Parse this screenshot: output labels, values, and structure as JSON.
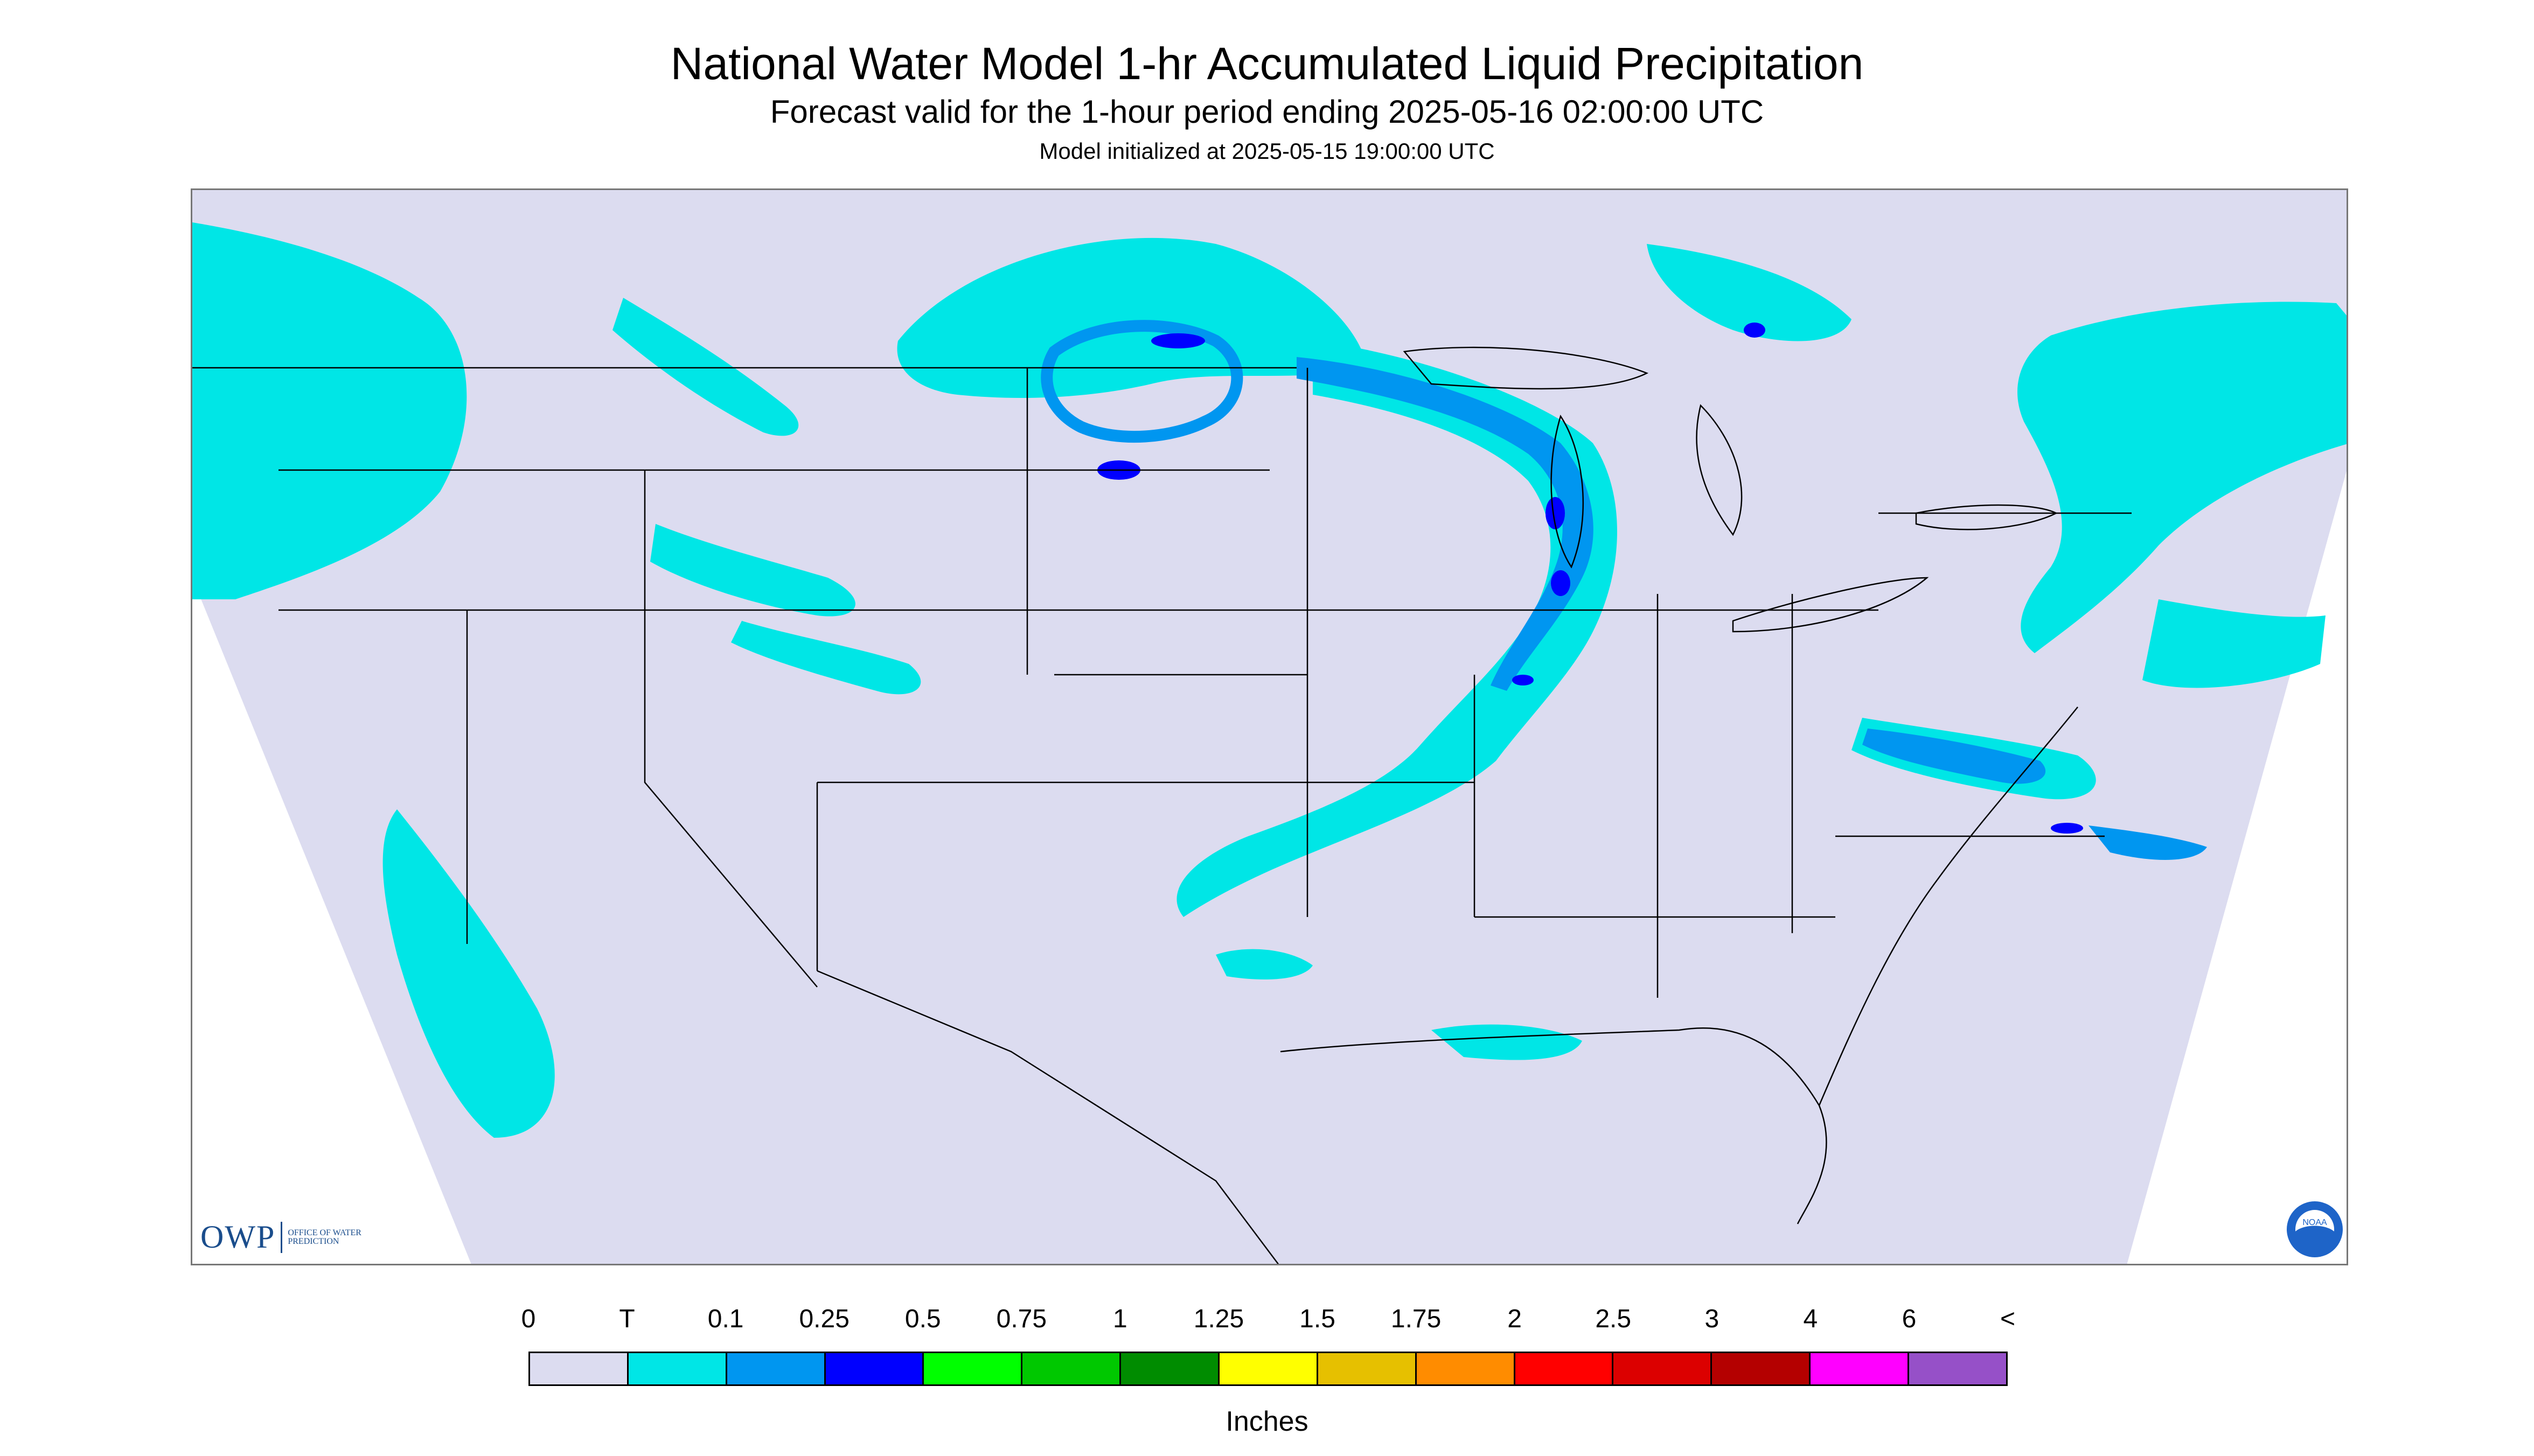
{
  "header": {
    "title": "National Water Model 1-hr Accumulated Liquid Precipitation",
    "subtitle": "Forecast valid for the 1-hour period ending 2025-05-16 02:00:00 UTC",
    "init": "Model initialized at 2025-05-15 19:00:00 UTC"
  },
  "map": {
    "background_color": "#dcdcf0",
    "outside_color": "#ffffff",
    "boundary_color": "#000000"
  },
  "logos": {
    "owp_text": "OWP",
    "owp_subtext": "OFFICE OF WATER PREDICTION",
    "noaa_text": "NOAA"
  },
  "legend": {
    "labels": [
      "0",
      "T",
      "0.1",
      "0.25",
      "0.5",
      "0.75",
      "1",
      "1.25",
      "1.5",
      "1.75",
      "2",
      "2.5",
      "3",
      "4",
      "6",
      "<"
    ],
    "colors": [
      "#dcdcf0",
      "#00e6e6",
      "#0096f0",
      "#0000ff",
      "#00ff00",
      "#00c800",
      "#008c00",
      "#ffff00",
      "#e6c000",
      "#ff8c00",
      "#ff0000",
      "#dc0000",
      "#b40000",
      "#ff00ff",
      "#9650c8"
    ],
    "units": "Inches"
  }
}
